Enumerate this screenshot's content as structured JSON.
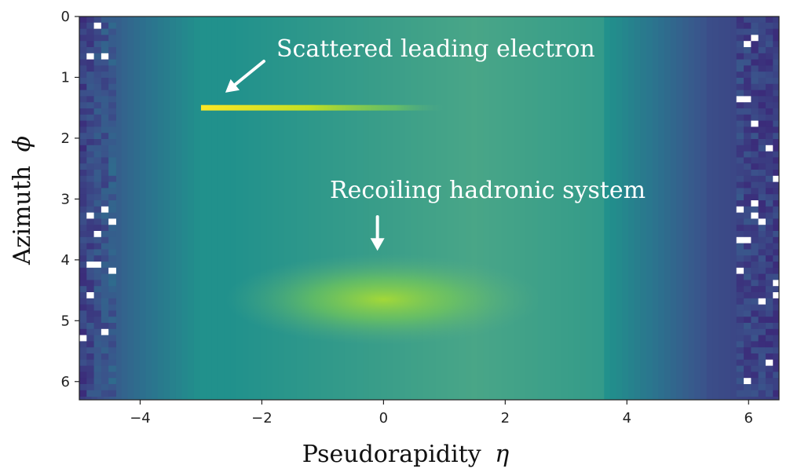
{
  "chart_data": {
    "type": "heatmap",
    "xlabel": "Pseudorapidity",
    "xlabel_symbol": "η",
    "ylabel": "Azimuth",
    "ylabel_symbol": "ϕ",
    "xlim": [
      -5,
      6.5
    ],
    "ylim": [
      0,
      6.3
    ],
    "y_inverted": true,
    "x_ticks": [
      -4,
      -2,
      0,
      2,
      4,
      6
    ],
    "x_tick_labels": [
      "−4",
      "−2",
      "0",
      "2",
      "4",
      "6"
    ],
    "y_ticks": [
      0,
      1,
      2,
      3,
      4,
      5,
      6
    ],
    "y_tick_labels": [
      "0",
      "1",
      "2",
      "3",
      "4",
      "5",
      "6"
    ],
    "colormap": "viridis",
    "features": [
      {
        "name": "scattered-electron-band",
        "eta_range": [
          -3.0,
          1.0
        ],
        "phi": 1.5,
        "peak_level": 1.0
      },
      {
        "name": "hadronic-blob",
        "eta_center": 0,
        "phi_center": 4.65,
        "peak_level": 0.78
      }
    ],
    "annotations": [
      {
        "text": "Scattered leading electron",
        "arrow_target": {
          "eta": -2.6,
          "phi": 1.25
        }
      },
      {
        "text": "Recoiling hadronic system",
        "arrow_target": {
          "eta": -0.1,
          "phi": 3.85
        }
      }
    ]
  },
  "colors": {
    "background": "#ffffff",
    "annotation_text": "#ffffff",
    "high": "#fde725",
    "mid": "#5db085",
    "low": "#3b2c7a"
  }
}
